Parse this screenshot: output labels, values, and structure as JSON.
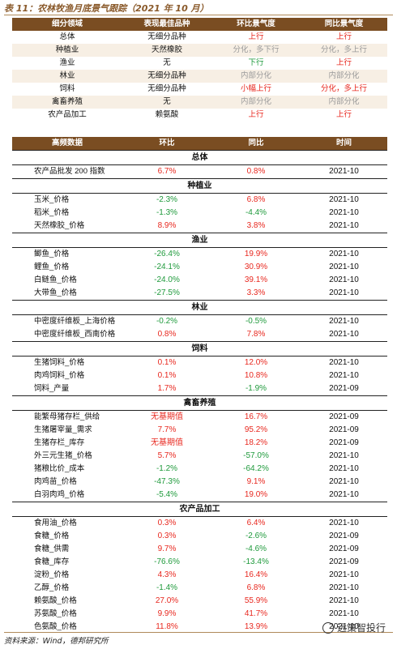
{
  "title": "表 11：农林牧渔月底景气跟踪（2021 年 10 月）",
  "summary": {
    "headers": [
      "细分领域",
      "表现最佳品种",
      "环比景气度",
      "同比景气度"
    ],
    "rows": [
      {
        "field": "总体",
        "best": "无细分品种",
        "mom": "上行",
        "mom_color": "red",
        "yoy": "上行",
        "yoy_color": "red"
      },
      {
        "field": "种植业",
        "best": "天然橡胶",
        "mom": "分化，多下行",
        "mom_color": "gray",
        "yoy": "分化，多上行",
        "yoy_color": "gray"
      },
      {
        "field": "渔业",
        "best": "无",
        "mom": "下行",
        "mom_color": "green",
        "yoy": "上行",
        "yoy_color": "red"
      },
      {
        "field": "林业",
        "best": "无细分品种",
        "mom": "内部分化",
        "mom_color": "gray",
        "yoy": "内部分化",
        "yoy_color": "gray"
      },
      {
        "field": "饲料",
        "best": "无细分品种",
        "mom": "小幅上行",
        "mom_color": "red",
        "yoy": "分化，多上行",
        "yoy_color": "red"
      },
      {
        "field": "禽畜养殖",
        "best": "无",
        "mom": "内部分化",
        "mom_color": "gray",
        "yoy": "内部分化",
        "yoy_color": "gray"
      },
      {
        "field": "农产品加工",
        "best": "赖氨酸",
        "mom": "上行",
        "mom_color": "red",
        "yoy": "上行",
        "yoy_color": "red"
      }
    ]
  },
  "detail": {
    "headers": [
      "高频数据",
      "环比",
      "同比",
      "时间"
    ],
    "sections": [
      {
        "name": "总体",
        "rows": [
          {
            "n": "农产品批发 200 指数",
            "m": "6.7%",
            "mc": "red",
            "y": "0.8%",
            "yc": "red",
            "t": "2021-10"
          }
        ]
      },
      {
        "name": "种植业",
        "rows": [
          {
            "n": "玉米_价格",
            "m": "-2.3%",
            "mc": "green",
            "y": "6.8%",
            "yc": "red",
            "t": "2021-10"
          },
          {
            "n": "稻米_价格",
            "m": "-1.3%",
            "mc": "green",
            "y": "-4.4%",
            "yc": "green",
            "t": "2021-10"
          },
          {
            "n": "天然橡胶_价格",
            "m": "8.9%",
            "mc": "red",
            "y": "3.8%",
            "yc": "red",
            "t": "2021-10"
          }
        ]
      },
      {
        "name": "渔业",
        "rows": [
          {
            "n": "鲫鱼_价格",
            "m": "-26.4%",
            "mc": "green",
            "y": "19.9%",
            "yc": "red",
            "t": "2021-10"
          },
          {
            "n": "鲤鱼_价格",
            "m": "-24.1%",
            "mc": "green",
            "y": "30.9%",
            "yc": "red",
            "t": "2021-10"
          },
          {
            "n": "白鲢鱼_价格",
            "m": "-24.0%",
            "mc": "green",
            "y": "39.1%",
            "yc": "red",
            "t": "2021-10"
          },
          {
            "n": "大带鱼_价格",
            "m": "-27.5%",
            "mc": "green",
            "y": "3.3%",
            "yc": "red",
            "t": "2021-10"
          }
        ]
      },
      {
        "name": "林业",
        "rows": [
          {
            "n": "中密度纤维板_上海价格",
            "m": "-0.2%",
            "mc": "green",
            "y": "-0.5%",
            "yc": "green",
            "t": "2021-10"
          },
          {
            "n": "中密度纤维板_西南价格",
            "m": "0.8%",
            "mc": "red",
            "y": "7.8%",
            "yc": "red",
            "t": "2021-10"
          }
        ]
      },
      {
        "name": "饲料",
        "rows": [
          {
            "n": "生猪饲料_价格",
            "m": "0.1%",
            "mc": "red",
            "y": "12.0%",
            "yc": "red",
            "t": "2021-10"
          },
          {
            "n": "肉鸡饲料_价格",
            "m": "0.1%",
            "mc": "red",
            "y": "10.8%",
            "yc": "red",
            "t": "2021-10"
          },
          {
            "n": "饲料_产量",
            "m": "1.7%",
            "mc": "red",
            "y": "-1.9%",
            "yc": "green",
            "t": "2021-09"
          }
        ]
      },
      {
        "name": "禽畜养殖",
        "rows": [
          {
            "n": "能繁母猪存栏_供给",
            "m": "无基期值",
            "mc": "red",
            "y": "16.7%",
            "yc": "red",
            "t": "2021-09"
          },
          {
            "n": "生猪屠宰量_需求",
            "m": "7.7%",
            "mc": "red",
            "y": "95.2%",
            "yc": "red",
            "t": "2021-09"
          },
          {
            "n": "生猪存栏_库存",
            "m": "无基期值",
            "mc": "red",
            "y": "18.2%",
            "yc": "red",
            "t": "2021-09"
          },
          {
            "n": "外三元生猪_价格",
            "m": "5.7%",
            "mc": "red",
            "y": "-57.0%",
            "yc": "green",
            "t": "2021-10"
          },
          {
            "n": "猪粮比价_成本",
            "m": "-1.2%",
            "mc": "green",
            "y": "-64.2%",
            "yc": "green",
            "t": "2021-10"
          },
          {
            "n": "肉鸡苗_价格",
            "m": "-47.3%",
            "mc": "green",
            "y": "9.1%",
            "yc": "red",
            "t": "2021-10"
          },
          {
            "n": "白羽肉鸡_价格",
            "m": "-5.4%",
            "mc": "green",
            "y": "19.0%",
            "yc": "red",
            "t": "2021-10"
          }
        ]
      },
      {
        "name": "农产品加工",
        "rows": [
          {
            "n": "食用油_价格",
            "m": "0.3%",
            "mc": "red",
            "y": "6.4%",
            "yc": "red",
            "t": "2021-10"
          },
          {
            "n": "食糖_价格",
            "m": "0.3%",
            "mc": "red",
            "y": "-2.6%",
            "yc": "green",
            "t": "2021-09"
          },
          {
            "n": "食糖_供需",
            "m": "9.7%",
            "mc": "red",
            "y": "-4.6%",
            "yc": "green",
            "t": "2021-09"
          },
          {
            "n": "食糖_库存",
            "m": "-76.6%",
            "mc": "green",
            "y": "-13.4%",
            "yc": "green",
            "t": "2021-09"
          },
          {
            "n": "淀粉_价格",
            "m": "4.3%",
            "mc": "red",
            "y": "16.4%",
            "yc": "red",
            "t": "2021-10"
          },
          {
            "n": "乙醇_价格",
            "m": "-1.4%",
            "mc": "green",
            "y": "6.8%",
            "yc": "red",
            "t": "2021-10"
          },
          {
            "n": "赖氨酸_价格",
            "m": "27.0%",
            "mc": "red",
            "y": "55.9%",
            "yc": "red",
            "t": "2021-10"
          },
          {
            "n": "苏氨酸_价格",
            "m": "9.9%",
            "mc": "red",
            "y": "41.7%",
            "yc": "red",
            "t": "2021-10"
          },
          {
            "n": "色氨酸_价格",
            "m": "11.8%",
            "mc": "red",
            "y": "13.9%",
            "yc": "red",
            "t": "2021-10"
          }
        ]
      }
    ]
  },
  "source": "资料来源：Wind，德邦研究所",
  "watermark": "远策智投行"
}
